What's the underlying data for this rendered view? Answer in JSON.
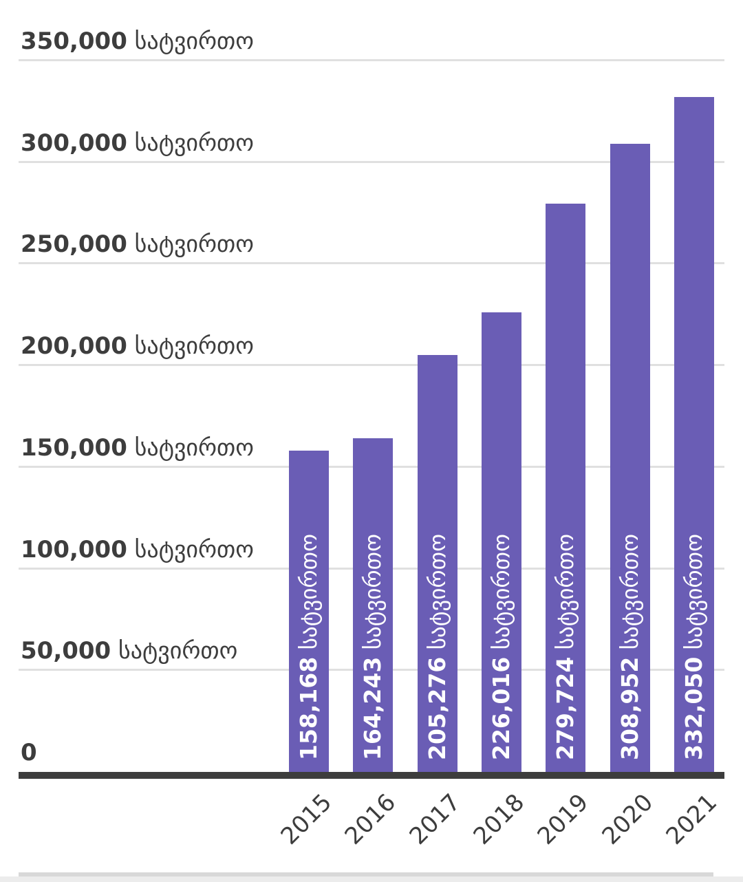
{
  "chart_data": {
    "type": "bar",
    "title": "",
    "unit": "სატვირთო",
    "categories": [
      "2015",
      "2016",
      "2017",
      "2018",
      "2019",
      "2020",
      "2021"
    ],
    "values": [
      158168,
      164243,
      205276,
      226016,
      279724,
      308952,
      332050
    ],
    "bar_value_labels": [
      "158,168",
      "164,243",
      "205,276",
      "226,016",
      "279,724",
      "308,952",
      "332,050"
    ],
    "bar_label_suffix": "სატვირთო",
    "y_axis": {
      "ylim": [
        0,
        350000
      ],
      "ticks": [
        {
          "value": 350000,
          "label": "350,000",
          "suffix": "სატვირთო"
        },
        {
          "value": 300000,
          "label": "300,000",
          "suffix": "სატვირთო"
        },
        {
          "value": 250000,
          "label": "250,000",
          "suffix": "სატვირთო"
        },
        {
          "value": 200000,
          "label": "200,000",
          "suffix": "სატვირთო"
        },
        {
          "value": 150000,
          "label": "150,000",
          "suffix": "სატვირთო"
        },
        {
          "value": 100000,
          "label": "100,000",
          "suffix": "სატვირთო"
        },
        {
          "value": 50000,
          "label": "50,000",
          "suffix": "სატვირთო"
        },
        {
          "value": 0,
          "label": "0",
          "suffix": ""
        }
      ]
    },
    "grid": true,
    "legend": "none",
    "colors": {
      "bar": "#6a5db5",
      "bar_label_text": "#ffffff",
      "gridline": "#e0e0e0",
      "axis_line": "#3d3d3d",
      "tick_text": "#3d3d3d",
      "x_label_text": "#3d3d3d",
      "background": "#ffffff",
      "bottom_divider": "#d8d8d8",
      "bottom_band": "#ececec"
    }
  }
}
